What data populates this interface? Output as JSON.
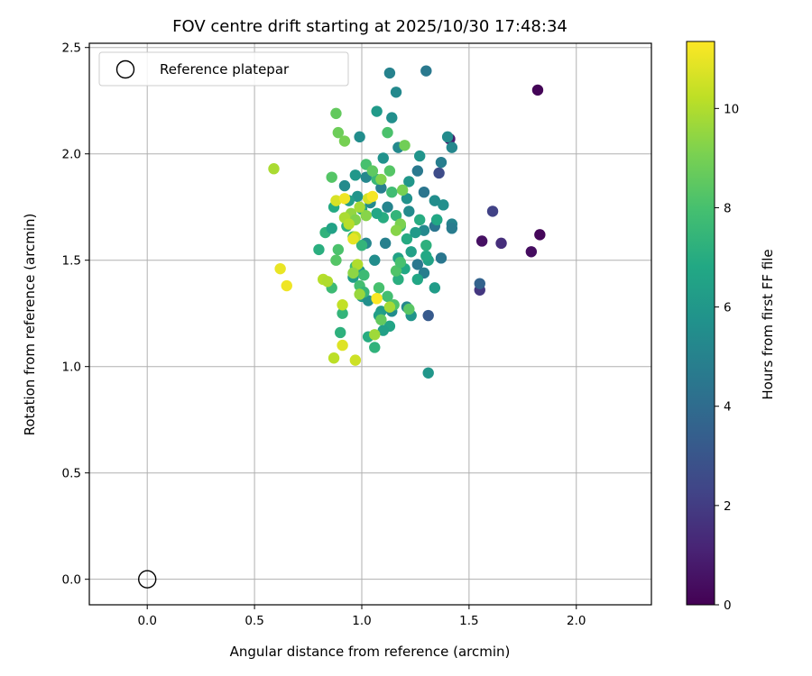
{
  "chart_data": {
    "type": "scatter",
    "title": "FOV centre drift starting at 2025/10/30 17:48:34",
    "xlabel": "Angular distance from reference (arcmin)",
    "ylabel": "Rotation from reference (arcmin)",
    "xlim": [
      -0.27,
      2.35
    ],
    "ylim": [
      -0.12,
      2.52
    ],
    "xticks": [
      "0.0",
      "0.5",
      "1.0",
      "1.5",
      "2.0"
    ],
    "yticks": [
      "0.0",
      "0.5",
      "1.0",
      "1.5",
      "2.0",
      "2.5"
    ],
    "grid": true,
    "colorbar": {
      "label": "Hours from first FF file",
      "min": 0,
      "max": 11.35,
      "ticks": [
        "0",
        "2",
        "4",
        "6",
        "8",
        "10"
      ],
      "colormap": "viridis"
    },
    "legend": {
      "position": "top-left",
      "entries": [
        "Reference platepar"
      ]
    },
    "reference_point": {
      "x": 0.0,
      "y": 0.0
    },
    "points": [
      {
        "x": 1.82,
        "y": 2.3,
        "c": 0.1
      },
      {
        "x": 1.83,
        "y": 1.62,
        "c": 0.2
      },
      {
        "x": 1.79,
        "y": 1.54,
        "c": 0.4
      },
      {
        "x": 1.56,
        "y": 1.59,
        "c": 0.5
      },
      {
        "x": 1.41,
        "y": 2.07,
        "c": 0.8
      },
      {
        "x": 1.65,
        "y": 1.58,
        "c": 1.5
      },
      {
        "x": 1.55,
        "y": 1.36,
        "c": 1.8
      },
      {
        "x": 1.61,
        "y": 1.73,
        "c": 2.2
      },
      {
        "x": 1.36,
        "y": 1.91,
        "c": 2.6
      },
      {
        "x": 1.55,
        "y": 1.39,
        "c": 3.6
      },
      {
        "x": 1.31,
        "y": 1.24,
        "c": 3.2
      },
      {
        "x": 1.35,
        "y": 1.69,
        "c": 3.5
      },
      {
        "x": 1.3,
        "y": 2.39,
        "c": 4.6
      },
      {
        "x": 1.13,
        "y": 2.38,
        "c": 5.0
      },
      {
        "x": 1.16,
        "y": 2.29,
        "c": 5.3
      },
      {
        "x": 1.14,
        "y": 2.17,
        "c": 5.6
      },
      {
        "x": 1.4,
        "y": 2.08,
        "c": 5.4
      },
      {
        "x": 1.42,
        "y": 2.03,
        "c": 5.2
      },
      {
        "x": 1.17,
        "y": 2.03,
        "c": 5.3
      },
      {
        "x": 1.27,
        "y": 1.99,
        "c": 5.8
      },
      {
        "x": 1.37,
        "y": 1.96,
        "c": 4.8
      },
      {
        "x": 1.26,
        "y": 1.92,
        "c": 4.6
      },
      {
        "x": 1.29,
        "y": 1.82,
        "c": 4.4
      },
      {
        "x": 1.34,
        "y": 1.78,
        "c": 5.5
      },
      {
        "x": 1.38,
        "y": 1.76,
        "c": 5.6
      },
      {
        "x": 1.42,
        "y": 1.67,
        "c": 5.1
      },
      {
        "x": 1.42,
        "y": 1.65,
        "c": 4.7
      },
      {
        "x": 1.34,
        "y": 1.66,
        "c": 4.4
      },
      {
        "x": 1.37,
        "y": 1.51,
        "c": 4.5
      },
      {
        "x": 1.29,
        "y": 1.44,
        "c": 4.8
      },
      {
        "x": 1.26,
        "y": 1.48,
        "c": 4.5
      },
      {
        "x": 1.29,
        "y": 1.64,
        "c": 5.3
      },
      {
        "x": 1.22,
        "y": 1.73,
        "c": 5.4
      },
      {
        "x": 1.21,
        "y": 1.79,
        "c": 5.7
      },
      {
        "x": 1.22,
        "y": 1.87,
        "c": 5.9
      },
      {
        "x": 1.12,
        "y": 1.75,
        "c": 5.1
      },
      {
        "x": 1.09,
        "y": 1.84,
        "c": 4.8
      },
      {
        "x": 1.1,
        "y": 1.98,
        "c": 5.7
      },
      {
        "x": 0.99,
        "y": 2.08,
        "c": 5.5
      },
      {
        "x": 1.07,
        "y": 2.2,
        "c": 6.1
      },
      {
        "x": 1.02,
        "y": 1.89,
        "c": 5.2
      },
      {
        "x": 0.97,
        "y": 1.9,
        "c": 6.0
      },
      {
        "x": 0.92,
        "y": 1.85,
        "c": 5.4
      },
      {
        "x": 0.98,
        "y": 1.8,
        "c": 5.8
      },
      {
        "x": 1.04,
        "y": 1.77,
        "c": 5.3
      },
      {
        "x": 1.11,
        "y": 1.58,
        "c": 4.9
      },
      {
        "x": 1.02,
        "y": 1.58,
        "c": 5.2
      },
      {
        "x": 1.06,
        "y": 1.5,
        "c": 5.5
      },
      {
        "x": 0.99,
        "y": 1.45,
        "c": 5.9
      },
      {
        "x": 0.96,
        "y": 1.42,
        "c": 6.2
      },
      {
        "x": 1.0,
        "y": 1.33,
        "c": 6.0
      },
      {
        "x": 1.03,
        "y": 1.31,
        "c": 5.6
      },
      {
        "x": 1.09,
        "y": 1.26,
        "c": 6.1
      },
      {
        "x": 1.14,
        "y": 1.26,
        "c": 5.5
      },
      {
        "x": 1.21,
        "y": 1.28,
        "c": 5.2
      },
      {
        "x": 1.23,
        "y": 1.24,
        "c": 5.8
      },
      {
        "x": 1.08,
        "y": 1.24,
        "c": 6.3
      },
      {
        "x": 1.13,
        "y": 1.19,
        "c": 6.6
      },
      {
        "x": 1.1,
        "y": 1.17,
        "c": 6.4
      },
      {
        "x": 1.03,
        "y": 1.14,
        "c": 7.0
      },
      {
        "x": 1.06,
        "y": 1.09,
        "c": 7.3
      },
      {
        "x": 1.31,
        "y": 0.97,
        "c": 5.9
      },
      {
        "x": 1.34,
        "y": 1.37,
        "c": 6.2
      },
      {
        "x": 1.31,
        "y": 1.5,
        "c": 6.5
      },
      {
        "x": 1.26,
        "y": 1.41,
        "c": 6.7
      },
      {
        "x": 1.17,
        "y": 1.41,
        "c": 7.1
      },
      {
        "x": 1.2,
        "y": 1.46,
        "c": 6.8
      },
      {
        "x": 1.17,
        "y": 1.51,
        "c": 6.5
      },
      {
        "x": 1.23,
        "y": 1.54,
        "c": 6.4
      },
      {
        "x": 1.21,
        "y": 1.6,
        "c": 6.9
      },
      {
        "x": 1.25,
        "y": 1.63,
        "c": 6.1
      },
      {
        "x": 1.27,
        "y": 1.69,
        "c": 7.0
      },
      {
        "x": 1.35,
        "y": 1.69,
        "c": 6.8
      },
      {
        "x": 1.3,
        "y": 1.57,
        "c": 7.2
      },
      {
        "x": 1.18,
        "y": 1.66,
        "c": 7.5
      },
      {
        "x": 1.16,
        "y": 1.71,
        "c": 7.4
      },
      {
        "x": 1.1,
        "y": 1.7,
        "c": 7.0
      },
      {
        "x": 1.07,
        "y": 1.72,
        "c": 6.7
      },
      {
        "x": 1.0,
        "y": 1.74,
        "c": 6.6
      },
      {
        "x": 0.94,
        "y": 1.78,
        "c": 6.3
      },
      {
        "x": 0.87,
        "y": 1.75,
        "c": 6.9
      },
      {
        "x": 0.83,
        "y": 1.63,
        "c": 7.3
      },
      {
        "x": 0.8,
        "y": 1.55,
        "c": 7.1
      },
      {
        "x": 0.86,
        "y": 1.65,
        "c": 6.5
      },
      {
        "x": 0.93,
        "y": 1.66,
        "c": 7.2
      },
      {
        "x": 0.96,
        "y": 1.61,
        "c": 7.6
      },
      {
        "x": 1.0,
        "y": 1.57,
        "c": 7.4
      },
      {
        "x": 1.01,
        "y": 1.43,
        "c": 7.7
      },
      {
        "x": 0.97,
        "y": 1.47,
        "c": 7.8
      },
      {
        "x": 0.99,
        "y": 1.38,
        "c": 7.9
      },
      {
        "x": 1.01,
        "y": 1.35,
        "c": 7.5
      },
      {
        "x": 0.91,
        "y": 1.25,
        "c": 7.4
      },
      {
        "x": 0.9,
        "y": 1.16,
        "c": 7.2
      },
      {
        "x": 0.86,
        "y": 1.37,
        "c": 7.7
      },
      {
        "x": 0.89,
        "y": 1.55,
        "c": 8.1
      },
      {
        "x": 0.88,
        "y": 1.5,
        "c": 8.3
      },
      {
        "x": 1.08,
        "y": 1.37,
        "c": 8.0
      },
      {
        "x": 1.12,
        "y": 1.33,
        "c": 7.9
      },
      {
        "x": 1.15,
        "y": 1.29,
        "c": 8.2
      },
      {
        "x": 1.22,
        "y": 1.27,
        "c": 8.4
      },
      {
        "x": 1.09,
        "y": 1.22,
        "c": 8.6
      },
      {
        "x": 1.16,
        "y": 1.45,
        "c": 8.2
      },
      {
        "x": 1.18,
        "y": 1.49,
        "c": 8.0
      },
      {
        "x": 1.14,
        "y": 1.82,
        "c": 7.8
      },
      {
        "x": 1.07,
        "y": 1.88,
        "c": 7.6
      },
      {
        "x": 1.02,
        "y": 1.95,
        "c": 8.0
      },
      {
        "x": 1.05,
        "y": 1.92,
        "c": 8.5
      },
      {
        "x": 1.13,
        "y": 1.92,
        "c": 8.3
      },
      {
        "x": 1.12,
        "y": 2.1,
        "c": 8.1
      },
      {
        "x": 1.2,
        "y": 2.04,
        "c": 8.9
      },
      {
        "x": 0.86,
        "y": 1.89,
        "c": 8.3
      },
      {
        "x": 0.88,
        "y": 2.19,
        "c": 8.6
      },
      {
        "x": 0.89,
        "y": 2.1,
        "c": 8.8
      },
      {
        "x": 0.92,
        "y": 2.06,
        "c": 9.0
      },
      {
        "x": 1.19,
        "y": 1.83,
        "c": 9.0
      },
      {
        "x": 1.18,
        "y": 1.67,
        "c": 9.1
      },
      {
        "x": 1.16,
        "y": 1.64,
        "c": 9.3
      },
      {
        "x": 1.09,
        "y": 1.88,
        "c": 9.2
      },
      {
        "x": 0.95,
        "y": 1.72,
        "c": 9.5
      },
      {
        "x": 0.97,
        "y": 1.69,
        "c": 9.2
      },
      {
        "x": 1.02,
        "y": 1.71,
        "c": 9.3
      },
      {
        "x": 0.99,
        "y": 1.75,
        "c": 9.8
      },
      {
        "x": 0.92,
        "y": 1.7,
        "c": 9.9
      },
      {
        "x": 0.94,
        "y": 1.67,
        "c": 10.1
      },
      {
        "x": 0.97,
        "y": 1.61,
        "c": 10.4
      },
      {
        "x": 0.98,
        "y": 1.48,
        "c": 10.0
      },
      {
        "x": 0.96,
        "y": 1.44,
        "c": 9.4
      },
      {
        "x": 0.99,
        "y": 1.34,
        "c": 9.6
      },
      {
        "x": 1.07,
        "y": 1.32,
        "c": 10.2
      },
      {
        "x": 1.06,
        "y": 1.15,
        "c": 9.7
      },
      {
        "x": 1.13,
        "y": 1.28,
        "c": 9.8
      },
      {
        "x": 0.59,
        "y": 1.93,
        "c": 9.9
      },
      {
        "x": 0.82,
        "y": 1.41,
        "c": 10.1
      },
      {
        "x": 0.84,
        "y": 1.4,
        "c": 10.0
      },
      {
        "x": 0.91,
        "y": 1.29,
        "c": 10.3
      },
      {
        "x": 0.87,
        "y": 1.04,
        "c": 10.2
      },
      {
        "x": 0.97,
        "y": 1.03,
        "c": 10.5
      },
      {
        "x": 1.03,
        "y": 1.79,
        "c": 10.6
      },
      {
        "x": 0.88,
        "y": 1.78,
        "c": 10.7
      },
      {
        "x": 0.92,
        "y": 1.79,
        "c": 11.1
      },
      {
        "x": 1.05,
        "y": 1.8,
        "c": 11.2
      },
      {
        "x": 0.62,
        "y": 1.46,
        "c": 11.0
      },
      {
        "x": 0.65,
        "y": 1.38,
        "c": 11.1
      },
      {
        "x": 0.91,
        "y": 1.1,
        "c": 10.8
      },
      {
        "x": 0.96,
        "y": 1.6,
        "c": 10.9
      },
      {
        "x": 1.07,
        "y": 1.32,
        "c": 11.3
      },
      {
        "x": 1.3,
        "y": 1.52,
        "c": 6.8
      }
    ]
  }
}
